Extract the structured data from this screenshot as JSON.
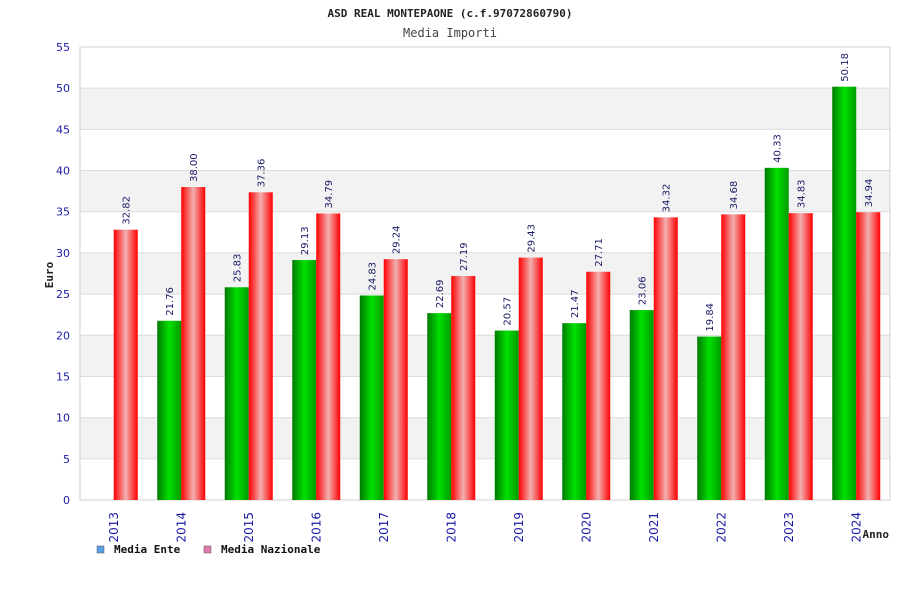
{
  "chart_data": {
    "type": "bar",
    "title": "ASD REAL MONTEPAONE (c.f.97072860790)",
    "subtitle": "Media Importi",
    "xlabel": "Anno",
    "ylabel": "Euro",
    "ylim": [
      0,
      55
    ],
    "yticks": [
      0,
      5,
      10,
      15,
      20,
      25,
      30,
      35,
      40,
      45,
      50,
      55
    ],
    "categories": [
      "2013",
      "2014",
      "2015",
      "2016",
      "2017",
      "2018",
      "2019",
      "2020",
      "2021",
      "2022",
      "2023",
      "2024"
    ],
    "series": [
      {
        "name": "Media Ente",
        "color": "#00b400",
        "values": [
          null,
          21.76,
          25.83,
          29.13,
          24.83,
          22.69,
          20.57,
          21.47,
          23.06,
          19.84,
          40.33,
          50.18
        ]
      },
      {
        "name": "Media Nazionale",
        "color": "#f01010",
        "values": [
          32.82,
          38.0,
          37.36,
          34.79,
          29.24,
          27.19,
          29.43,
          27.71,
          34.32,
          34.68,
          34.83,
          34.94
        ]
      }
    ],
    "data_labels": [
      [
        "",
        "21.76",
        "25.83",
        "29.13",
        "24.83",
        "22.69",
        "20.57",
        "21.47",
        "23.06",
        "19.84",
        "40.33",
        "50.18"
      ],
      [
        "32.82",
        "38.00",
        "37.36",
        "34.79",
        "29.24",
        "27.19",
        "29.43",
        "27.71",
        "34.32",
        "34.68",
        "34.83",
        "34.94"
      ]
    ],
    "legend": {
      "position": "bottom-left",
      "items": [
        {
          "label": "Media Ente",
          "swatch": "#5aa0e6"
        },
        {
          "label": "Media Nazionale",
          "swatch": "#e07ab0"
        }
      ]
    },
    "grid": true,
    "band_colors": [
      "#ffffff",
      "#f2f2f2"
    ]
  }
}
